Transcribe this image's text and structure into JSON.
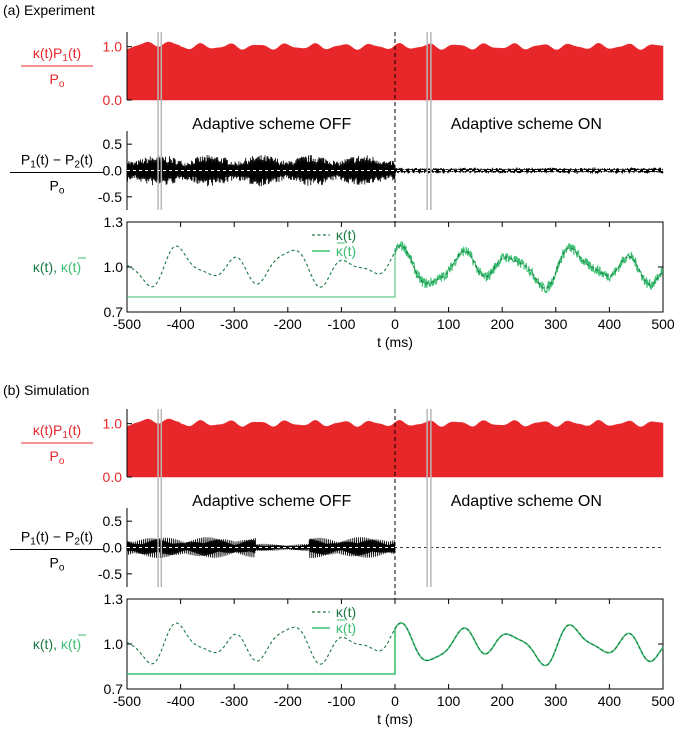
{
  "colors": {
    "red": "#e8272a",
    "black": "#000000",
    "green_dark": "#1a7a45",
    "green_light": "#3cbf72",
    "gray_marker": "#b8b8b8"
  },
  "chart_data": [
    {
      "panel": "(a) Experiment",
      "type": "line",
      "xlabel": "t (ms)",
      "xlim": [
        -500,
        500
      ],
      "xticks": [
        -500,
        -400,
        -300,
        -200,
        -100,
        0,
        100,
        200,
        300,
        400,
        500
      ],
      "vertical_markers_ms": [
        0
      ],
      "subplots": [
        {
          "id": "power",
          "ylabel_num": "κ(t)P",
          "ylabel_num_sub": "1",
          "ylabel_num_tail": "(t)",
          "ylabel_den": "P",
          "ylabel_den_sub": "o",
          "ylim": [
            0,
            1.2
          ],
          "yticks": [
            0.0,
            1.0
          ],
          "ytick_labels": [
            "0.0",
            "1.0"
          ],
          "series": [
            {
              "kind": "filled area",
              "color": "red",
              "mean": 1.0,
              "ripple": 0.06
            }
          ]
        },
        {
          "id": "difference",
          "ylabel_num": "P",
          "ylabel_num_sub": "1",
          "ylabel_num_tail": "(t) − P",
          "ylabel_num_sub2": "2",
          "ylabel_num_tail2": "(t)",
          "ylabel_den": "P",
          "ylabel_den_sub": "o",
          "ylim": [
            -0.75,
            0.75
          ],
          "yticks": [
            -0.5,
            0.0,
            0.5
          ],
          "ytick_labels": [
            "-0.5",
            "0.0",
            "0.5"
          ],
          "annotations": [
            "Adaptive scheme OFF",
            "Adaptive scheme ON"
          ],
          "series": [
            {
              "kind": "oscillation",
              "color": "black",
              "amplitude_off": 0.3,
              "amplitude_on": 0.04
            }
          ]
        },
        {
          "id": "kappa",
          "ylabel": "κ(t), ",
          "ylabel_bar": "κ(t)",
          "ylim": [
            0.7,
            1.3
          ],
          "yticks": [
            0.7,
            1.0,
            1.3
          ],
          "ytick_labels": [
            "0.7",
            "1.0",
            "1.3"
          ],
          "legend": [
            "κ(t)",
            "κ(t)"
          ],
          "series": [
            {
              "name": "κ(t)",
              "style": "dashed",
              "color": "green_dark",
              "mean": 1.0,
              "range": [
                0.82,
                1.15
              ]
            },
            {
              "name": "κ(t)",
              "bar": true,
              "style": "solid",
              "color": "green_light",
              "value_off": 0.8,
              "tracks_kappa_after_ms": 0,
              "noisy": true
            }
          ]
        }
      ]
    },
    {
      "panel": "(b) Simulation",
      "type": "line",
      "xlabel": "t (ms)",
      "xlim": [
        -500,
        500
      ],
      "xticks": [
        -500,
        -400,
        -300,
        -200,
        -100,
        0,
        100,
        200,
        300,
        400,
        500
      ],
      "vertical_markers_ms": [
        0
      ],
      "subplots": [
        {
          "id": "power",
          "ylabel_num": "κ(t)P",
          "ylabel_num_sub": "1",
          "ylabel_num_tail": "(t)",
          "ylabel_den": "P",
          "ylabel_den_sub": "o",
          "ylim": [
            0,
            1.2
          ],
          "yticks": [
            0.0,
            1.0
          ],
          "ytick_labels": [
            "0.0",
            "1.0"
          ],
          "series": [
            {
              "kind": "filled area",
              "color": "red",
              "mean": 1.0,
              "ripple": 0.06
            }
          ]
        },
        {
          "id": "difference",
          "ylabel_num": "P",
          "ylabel_num_sub": "1",
          "ylabel_num_tail": "(t) − P",
          "ylabel_num_sub2": "2",
          "ylabel_num_tail2": "(t)",
          "ylabel_den": "P",
          "ylabel_den_sub": "o",
          "ylim": [
            -0.75,
            0.75
          ],
          "yticks": [
            -0.5,
            0.0,
            0.5
          ],
          "ytick_labels": [
            "-0.5",
            "0.0",
            "0.5"
          ],
          "annotations": [
            "Adaptive scheme OFF",
            "Adaptive scheme ON"
          ],
          "series": [
            {
              "kind": "oscillation",
              "color": "black",
              "amplitude_off": 0.2,
              "amplitude_on": 0.0
            }
          ]
        },
        {
          "id": "kappa",
          "ylabel": "κ(t), ",
          "ylabel_bar": "κ(t)",
          "ylim": [
            0.7,
            1.3
          ],
          "yticks": [
            0.7,
            1.0,
            1.3
          ],
          "ytick_labels": [
            "0.7",
            "1.0",
            "1.3"
          ],
          "legend": [
            "κ(t)",
            "κ(t)"
          ],
          "series": [
            {
              "name": "κ(t)",
              "style": "dashed",
              "color": "green_dark",
              "mean": 1.0,
              "range": [
                0.82,
                1.15
              ]
            },
            {
              "name": "κ(t)",
              "bar": true,
              "style": "solid",
              "color": "green_light",
              "value_off": 0.8,
              "tracks_kappa_after_ms": 0,
              "noisy": false
            }
          ]
        }
      ]
    }
  ]
}
